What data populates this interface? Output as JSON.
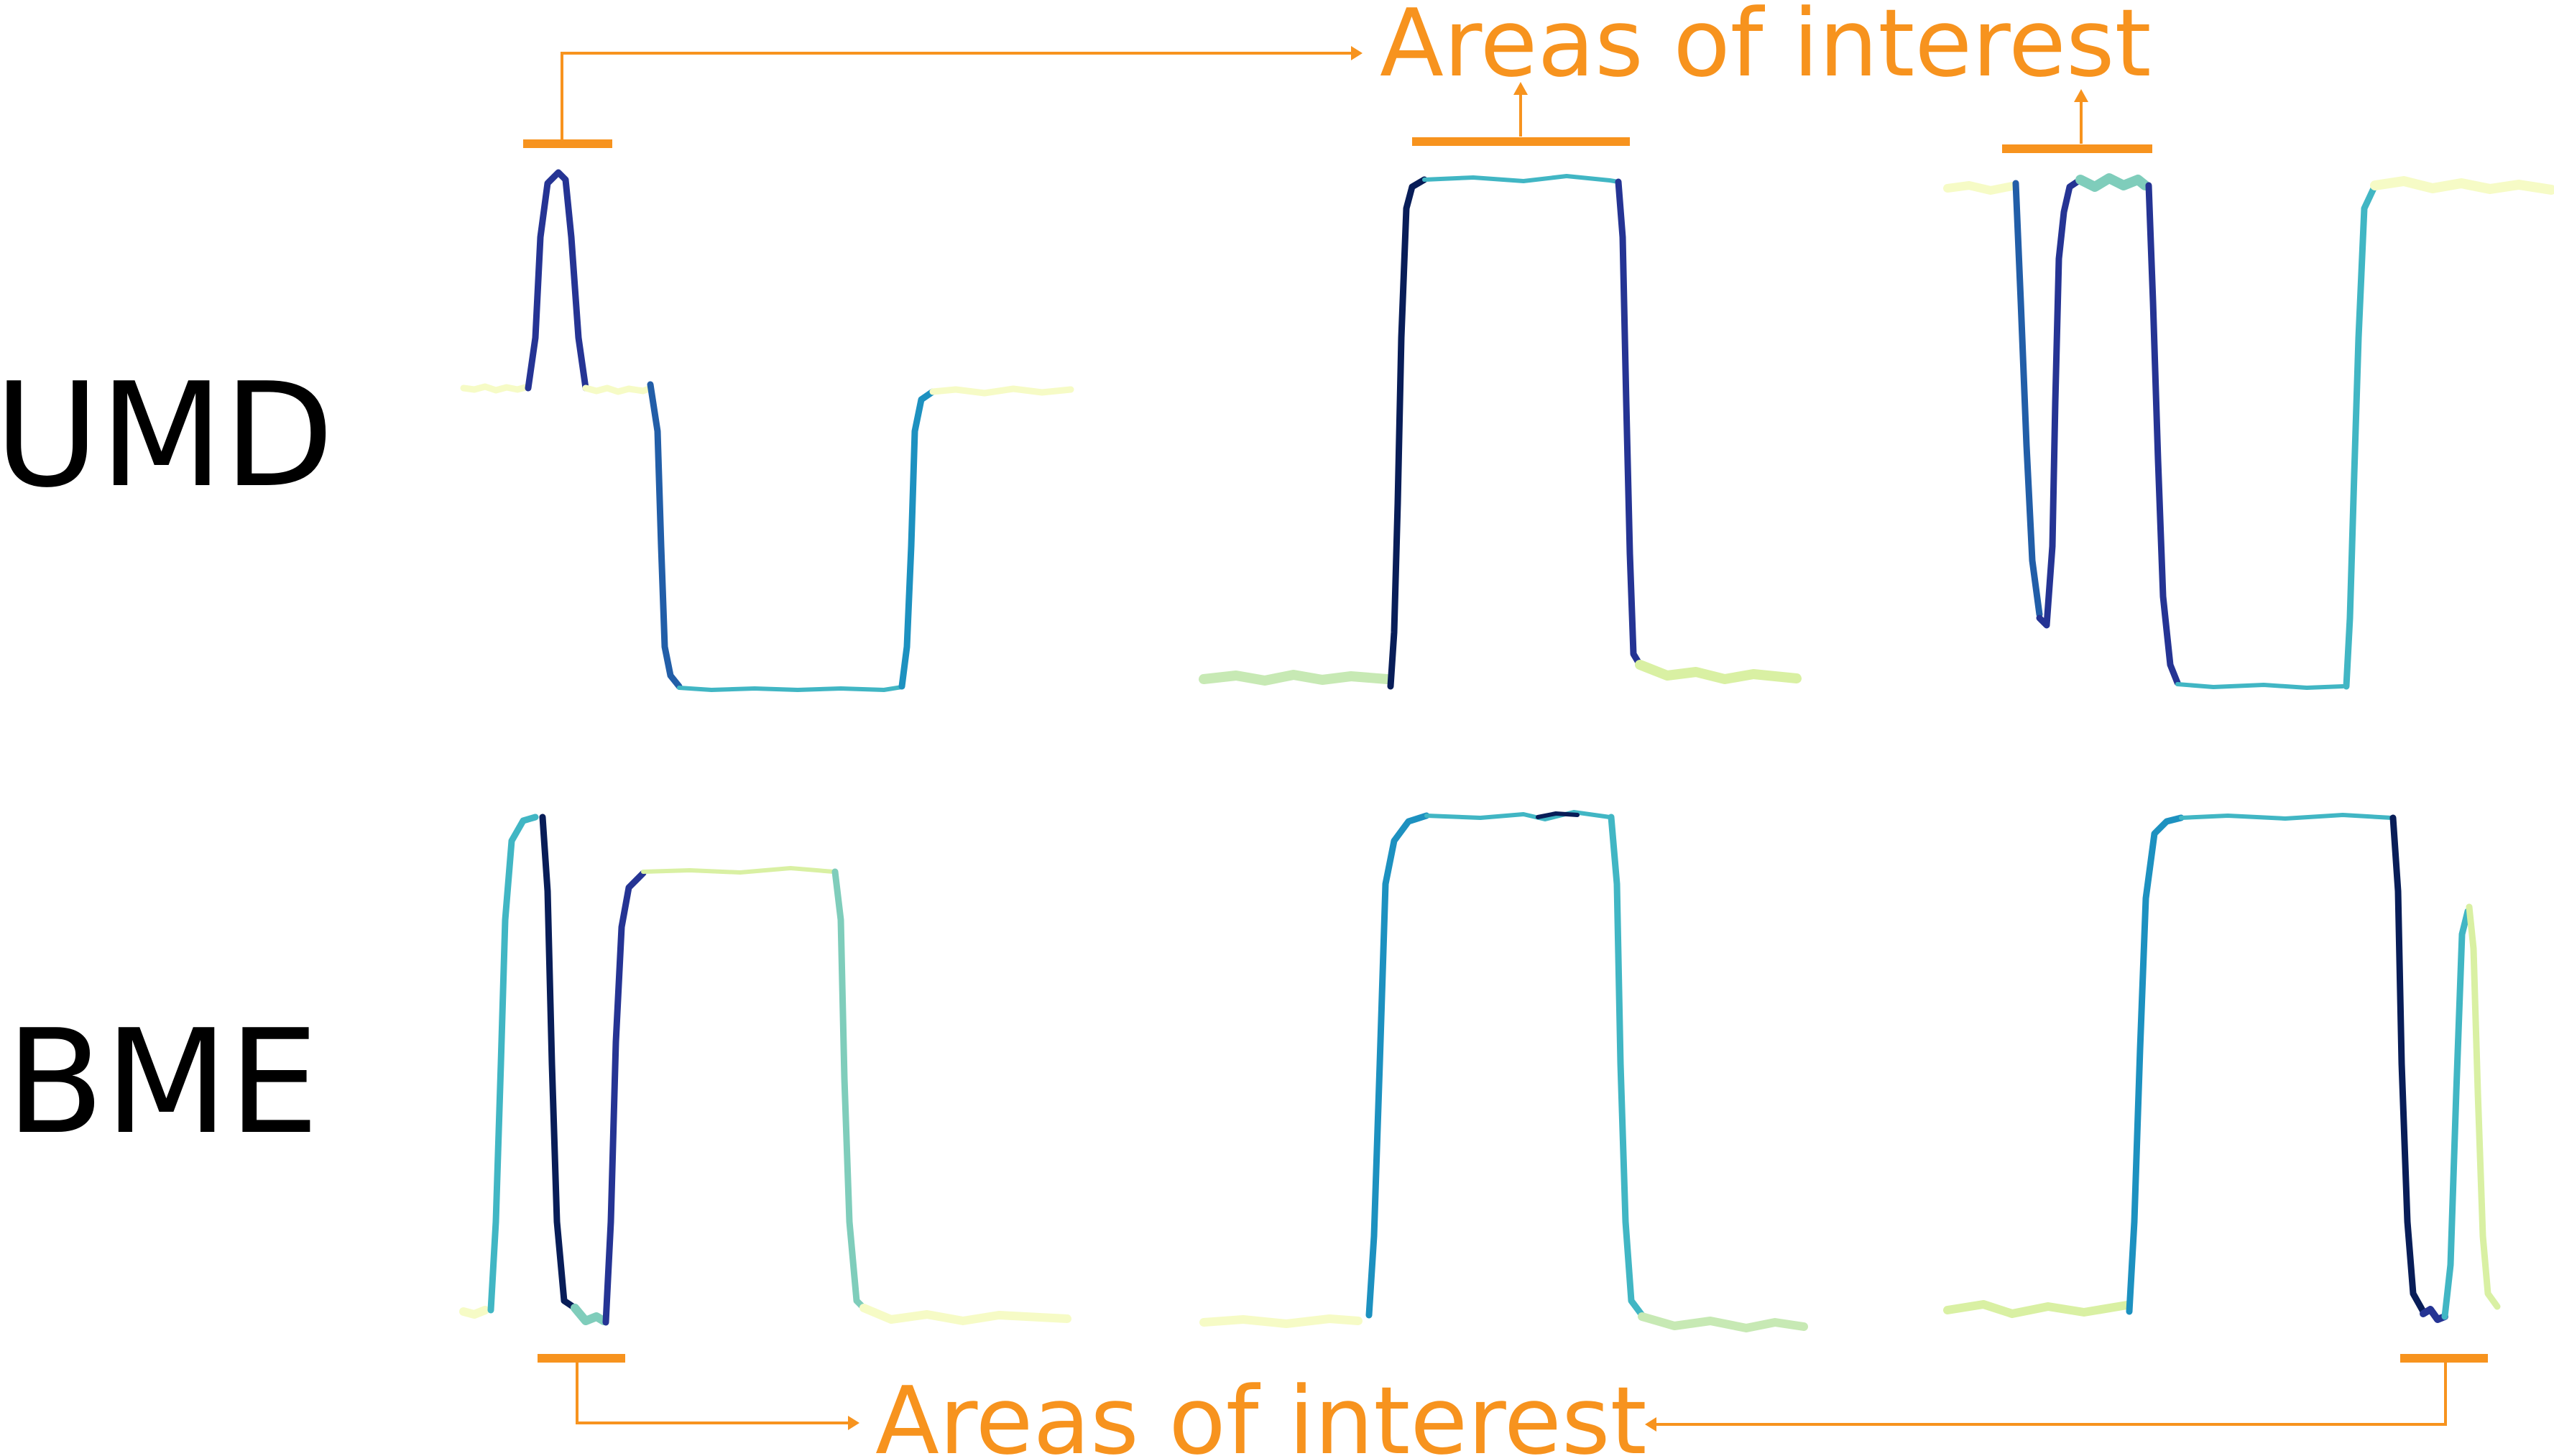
{
  "figure": {
    "rows": [
      {
        "label": "UMD"
      },
      {
        "label": "BME"
      }
    ],
    "annotations": {
      "top_label": "Areas of interest",
      "bottom_label": "Areas of interest"
    }
  },
  "colors": {
    "annotation": "#f7931e",
    "text": "#000000",
    "trace_palette": [
      "#f6fbc6",
      "#d9f0a3",
      "#c7e9b4",
      "#7fcdbb",
      "#41b6c4",
      "#1d91c0",
      "#225ea8",
      "#253494",
      "#081d58"
    ]
  }
}
